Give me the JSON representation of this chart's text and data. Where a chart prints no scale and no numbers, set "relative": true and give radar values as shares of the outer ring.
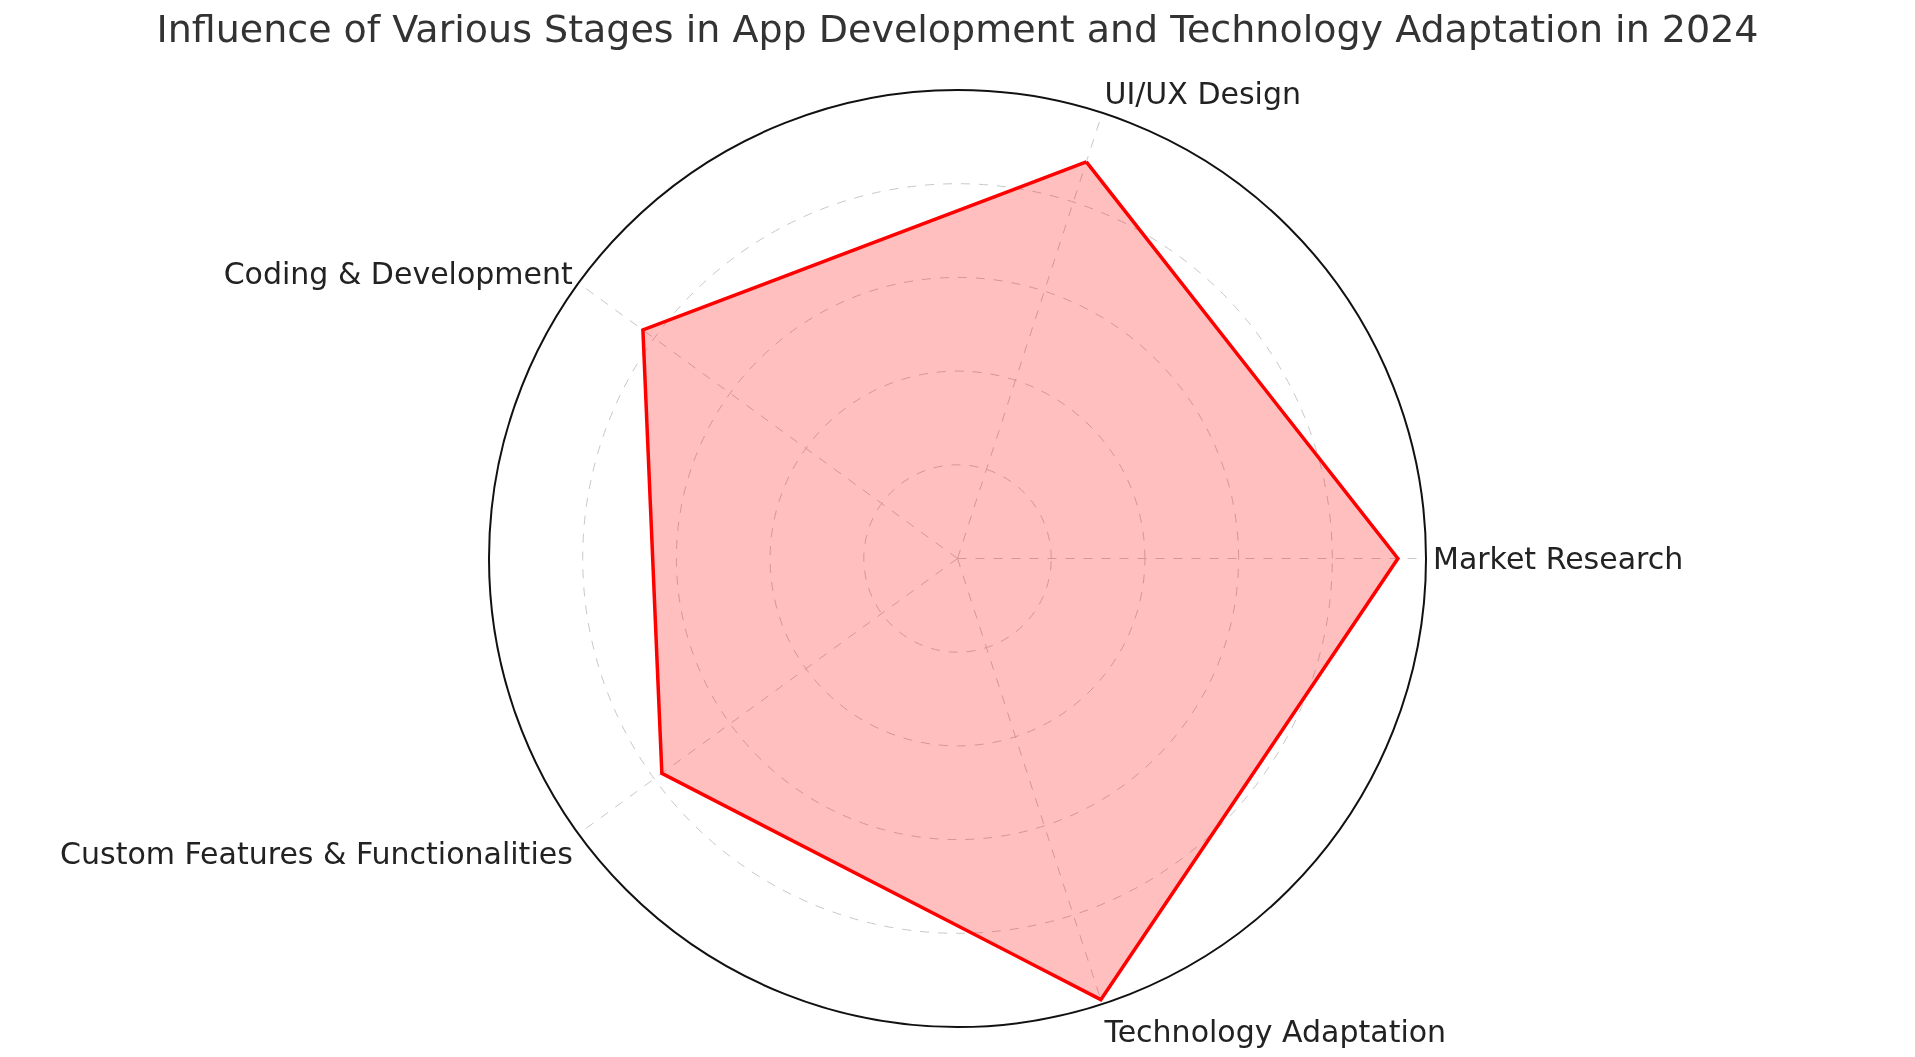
{
  "chart_data": {
    "type": "radar",
    "title": "Influence of Various Stages in App Development and Technology Adaptation in 2024",
    "categories": [
      "UI/UX Design",
      "Market Research",
      "Technology Adaptation",
      "Custom Features & Functionalities",
      "Coding & Development"
    ],
    "relative": true,
    "grid": true,
    "series": [
      {
        "color": "#ff0000",
        "values": [
          0.89,
          0.94,
          0.99,
          0.78,
          0.83
        ]
      }
    ]
  }
}
